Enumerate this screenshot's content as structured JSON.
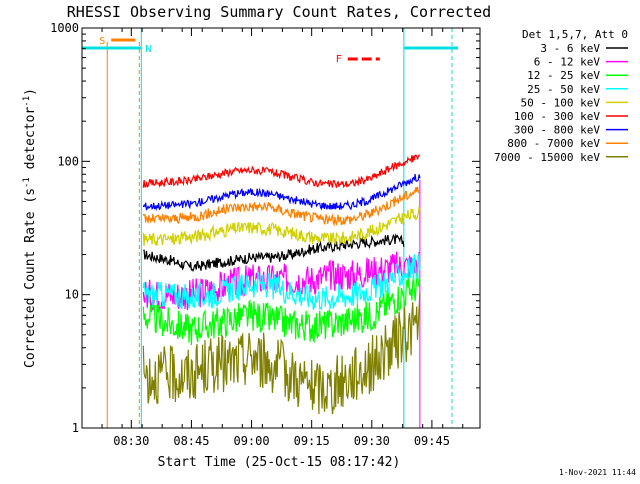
{
  "chart_data": {
    "type": "line",
    "title": "RHESSI Observing Summary Count Rates, Corrected",
    "ylabel": "Corrected Count Rate (s",
    "ylabel_sup1": "-1",
    "ylabel_mid": " detector",
    "ylabel_sup2": "-1",
    "ylabel_end": ")",
    "xlabel": "Start Time (25-Oct-15 08:17:42)",
    "yscale": "log",
    "ylim": [
      1,
      1000
    ],
    "xlim": [
      "08:17:42",
      "09:57:00"
    ],
    "x_ticks": [
      "08:30",
      "08:45",
      "09:00",
      "09:15",
      "09:30",
      "09:45"
    ],
    "y_ticks": [
      {
        "value": 1,
        "label": "1"
      },
      {
        "value": 10,
        "label": "10"
      },
      {
        "value": 100,
        "label": "100"
      },
      {
        "value": 1000,
        "label": "1000"
      }
    ],
    "legend_title": "Det 1,5,7, Att 0",
    "legend_position": "right",
    "series": [
      {
        "name": "3 - 6 keV",
        "color": "#000000",
        "x": [
          "08:33",
          "08:40",
          "08:45",
          "08:50",
          "08:55",
          "09:00",
          "09:05",
          "09:10",
          "09:15",
          "09:20",
          "09:25",
          "09:30",
          "09:35",
          "09:38"
        ],
        "values": [
          20,
          18,
          16,
          17,
          18,
          19,
          19,
          20,
          22,
          23,
          24,
          25,
          26,
          25
        ]
      },
      {
        "name": "6 - 12 keV",
        "color": "#ff00ff",
        "x": [
          "08:33",
          "08:40",
          "08:45",
          "08:50",
          "08:55",
          "09:00",
          "09:05",
          "09:10",
          "09:15",
          "09:20",
          "09:25",
          "09:30",
          "09:35",
          "09:42"
        ],
        "values": [
          10,
          10,
          10,
          11,
          12,
          13,
          13,
          13,
          13,
          14,
          14,
          15,
          16,
          17
        ]
      },
      {
        "name": "12 - 25 keV",
        "color": "#00ff00",
        "x": [
          "08:33",
          "08:40",
          "08:45",
          "08:50",
          "08:55",
          "09:00",
          "09:05",
          "09:10",
          "09:15",
          "09:20",
          "09:25",
          "09:30",
          "09:35",
          "09:42"
        ],
        "values": [
          7,
          6,
          5.5,
          6,
          6.5,
          7,
          6.5,
          6,
          5.8,
          6,
          6.5,
          7,
          9,
          12
        ]
      },
      {
        "name": "25 - 50 keV",
        "color": "#00ffff",
        "x": [
          "08:33",
          "08:40",
          "08:45",
          "08:50",
          "08:55",
          "09:00",
          "09:05",
          "09:10",
          "09:15",
          "09:20",
          "09:25",
          "09:30",
          "09:35",
          "09:42"
        ],
        "values": [
          10,
          10,
          9.5,
          10,
          11,
          12,
          11.5,
          10.5,
          9.5,
          9.5,
          10,
          11,
          13,
          17
        ]
      },
      {
        "name": "50 - 100 keV",
        "color": "#d0d000",
        "x": [
          "08:33",
          "08:40",
          "08:45",
          "08:50",
          "08:55",
          "09:00",
          "09:05",
          "09:10",
          "09:15",
          "09:20",
          "09:25",
          "09:30",
          "09:35",
          "09:42"
        ],
        "values": [
          26,
          26,
          27,
          29,
          31,
          32,
          31,
          29,
          27,
          26,
          27,
          30,
          35,
          42
        ]
      },
      {
        "name": "100 - 300 keV",
        "color": "#ff0000",
        "x": [
          "08:33",
          "08:40",
          "08:45",
          "08:50",
          "08:55",
          "09:00",
          "09:05",
          "09:10",
          "09:15",
          "09:20",
          "09:25",
          "09:30",
          "09:35",
          "09:42"
        ],
        "values": [
          68,
          70,
          72,
          78,
          84,
          86,
          83,
          76,
          70,
          67,
          68,
          75,
          90,
          110
        ]
      },
      {
        "name": "300 - 800 keV",
        "color": "#0000ff",
        "x": [
          "08:33",
          "08:40",
          "08:45",
          "08:50",
          "08:55",
          "09:00",
          "09:05",
          "09:10",
          "09:15",
          "09:20",
          "09:25",
          "09:30",
          "09:35",
          "09:42"
        ],
        "values": [
          46,
          47,
          48,
          52,
          57,
          59,
          57,
          52,
          48,
          46,
          47,
          52,
          62,
          78
        ]
      },
      {
        "name": "800 - 7000 keV",
        "color": "#ff8000",
        "x": [
          "08:33",
          "08:40",
          "08:45",
          "08:50",
          "08:55",
          "09:00",
          "09:05",
          "09:10",
          "09:15",
          "09:20",
          "09:25",
          "09:30",
          "09:35",
          "09:42"
        ],
        "values": [
          37,
          37,
          38,
          41,
          45,
          46,
          45,
          41,
          38,
          36,
          37,
          41,
          49,
          62
        ]
      },
      {
        "name": "7000 - 15000 keV",
        "color": "#808000",
        "x": [
          "08:33",
          "08:40",
          "08:45",
          "08:50",
          "08:55",
          "09:00",
          "09:05",
          "09:10",
          "09:15",
          "09:20",
          "09:25",
          "09:30",
          "09:35",
          "09:42"
        ],
        "values": [
          2.5,
          2.5,
          2.5,
          3,
          3,
          3.5,
          3,
          2.5,
          2,
          2,
          2.5,
          3,
          4,
          6.5
        ]
      }
    ],
    "flags": [
      {
        "label": "S",
        "color": "#ff8000"
      },
      {
        "label": "N",
        "color": "#00e0e0"
      },
      {
        "label": "F",
        "color": "#ff0000"
      }
    ]
  },
  "timestamp": "1-Nov-2021 11:44"
}
